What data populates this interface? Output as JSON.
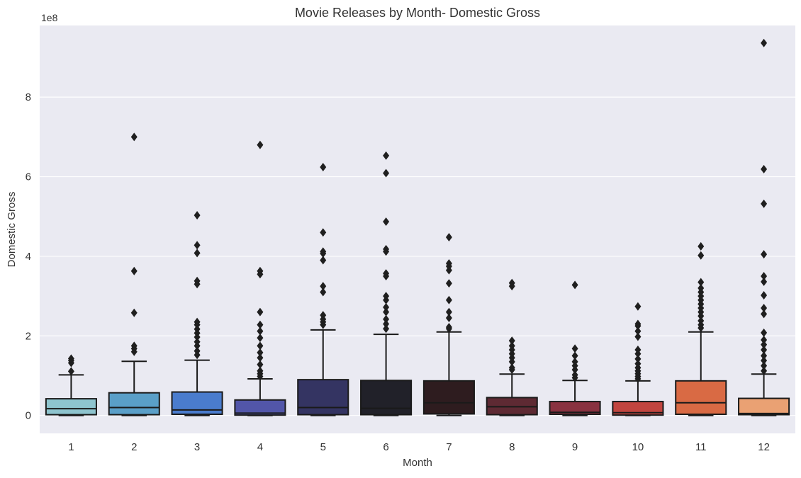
{
  "chart_data": {
    "type": "box",
    "title": "Movie Releases by Month- Domestic Gross",
    "xlabel": "Month",
    "ylabel": "Domestic Gross",
    "y_offset_label": "1e8",
    "y_tick_values": [
      0,
      2,
      4,
      6,
      8
    ],
    "y_tick_labels": [
      "0",
      "2",
      "4",
      "6",
      "8"
    ],
    "ylim": [
      -0.45,
      9.8
    ],
    "y_units": "1e8",
    "grid": true,
    "categories": [
      "1",
      "2",
      "3",
      "4",
      "5",
      "6",
      "7",
      "8",
      "9",
      "10",
      "11",
      "12"
    ],
    "colors": [
      "#8ec4ce",
      "#5a9fc8",
      "#4a7ccd",
      "#5256a9",
      "#343462",
      "#212129",
      "#2e1c1f",
      "#5e2a33",
      "#893240",
      "#c1453f",
      "#d96a44",
      "#eaa173"
    ],
    "boxes": [
      {
        "month": "1",
        "min": 0,
        "q1": 0.02,
        "median": 0.17,
        "q3": 0.42,
        "whisker_high": 1.02,
        "outliers": [
          1.11,
          1.32,
          1.38,
          1.43
        ]
      },
      {
        "month": "2",
        "min": 0,
        "q1": 0.02,
        "median": 0.2,
        "q3": 0.57,
        "whisker_high": 1.36,
        "outliers": [
          1.6,
          1.68,
          1.75,
          2.58,
          3.63,
          7.0
        ]
      },
      {
        "month": "3",
        "min": 0,
        "q1": 0.03,
        "median": 0.14,
        "q3": 0.59,
        "whisker_high": 1.39,
        "outliers": [
          1.52,
          1.62,
          1.75,
          1.85,
          1.97,
          2.07,
          2.17,
          2.28,
          2.35,
          3.3,
          3.38,
          4.08,
          4.28,
          5.03
        ]
      },
      {
        "month": "4",
        "min": 0,
        "q1": 0.01,
        "median": 0.06,
        "q3": 0.39,
        "whisker_high": 0.92,
        "outliers": [
          0.98,
          1.05,
          1.12,
          1.28,
          1.45,
          1.58,
          1.75,
          1.95,
          2.12,
          2.28,
          2.6,
          3.55,
          3.63,
          6.8
        ]
      },
      {
        "month": "5",
        "min": 0,
        "q1": 0.02,
        "median": 0.2,
        "q3": 0.9,
        "whisker_high": 2.15,
        "outliers": [
          2.28,
          2.35,
          2.42,
          2.52,
          3.1,
          3.25,
          3.9,
          4.07,
          4.12,
          4.6,
          6.24
        ]
      },
      {
        "month": "6",
        "min": 0,
        "q1": 0.02,
        "median": 0.18,
        "q3": 0.88,
        "whisker_high": 2.04,
        "outliers": [
          2.18,
          2.3,
          2.42,
          2.6,
          2.72,
          2.9,
          3.0,
          3.5,
          3.57,
          4.12,
          4.18,
          4.87,
          6.09,
          6.53
        ]
      },
      {
        "month": "7",
        "min": 0,
        "q1": 0.04,
        "median": 0.32,
        "q3": 0.87,
        "whisker_high": 2.1,
        "outliers": [
          2.18,
          2.22,
          2.45,
          2.6,
          2.9,
          3.32,
          3.65,
          3.75,
          3.82,
          4.48
        ]
      },
      {
        "month": "8",
        "min": 0,
        "q1": 0.02,
        "median": 0.22,
        "q3": 0.45,
        "whisker_high": 1.04,
        "outliers": [
          1.15,
          1.2,
          1.35,
          1.45,
          1.55,
          1.65,
          1.75,
          1.88,
          3.25,
          3.33
        ]
      },
      {
        "month": "9",
        "min": 0,
        "q1": 0.03,
        "median": 0.08,
        "q3": 0.35,
        "whisker_high": 0.88,
        "outliers": [
          0.95,
          1.02,
          1.15,
          1.25,
          1.35,
          1.5,
          1.68,
          3.28
        ]
      },
      {
        "month": "10",
        "min": 0,
        "q1": 0.01,
        "median": 0.07,
        "q3": 0.35,
        "whisker_high": 0.87,
        "outliers": [
          0.92,
          0.98,
          1.05,
          1.12,
          1.2,
          1.3,
          1.42,
          1.55,
          1.65,
          1.98,
          2.12,
          2.25,
          2.3,
          2.74
        ]
      },
      {
        "month": "11",
        "min": 0,
        "q1": 0.03,
        "median": 0.32,
        "q3": 0.87,
        "whisker_high": 2.1,
        "outliers": [
          2.2,
          2.28,
          2.38,
          2.5,
          2.6,
          2.7,
          2.8,
          2.9,
          3.0,
          3.1,
          3.2,
          3.35,
          4.02,
          4.25
        ]
      },
      {
        "month": "12",
        "min": 0,
        "q1": 0.02,
        "median": 0.05,
        "q3": 0.43,
        "whisker_high": 1.04,
        "outliers": [
          1.12,
          1.25,
          1.38,
          1.5,
          1.65,
          1.78,
          1.9,
          2.08,
          2.55,
          2.7,
          3.02,
          3.36,
          3.5,
          4.05,
          5.32,
          6.19,
          9.36
        ]
      }
    ]
  }
}
